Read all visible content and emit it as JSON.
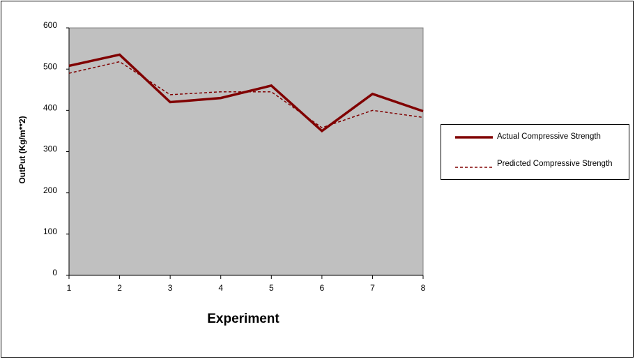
{
  "chart_data": {
    "type": "line",
    "x_label": "Experiment",
    "y_label": "OutPut (Kg/m**2)",
    "x": [
      1,
      2,
      3,
      4,
      5,
      6,
      7,
      8
    ],
    "series": [
      {
        "name": "Actual Compressive Strength",
        "color": "#800000",
        "style": "solid",
        "values": [
          508,
          535,
          420,
          430,
          460,
          350,
          440,
          398
        ]
      },
      {
        "name": "Predicted Compressive Strength",
        "color": "#800000",
        "style": "dashed",
        "values": [
          490,
          518,
          438,
          445,
          445,
          358,
          400,
          383
        ]
      }
    ],
    "xlim": [
      1,
      8
    ],
    "xticks": [
      1,
      2,
      3,
      4,
      5,
      6,
      7,
      8
    ],
    "ylim": [
      0,
      600
    ],
    "yticks": [
      0,
      100,
      200,
      300,
      400,
      500,
      600
    ],
    "grid": false,
    "legend": "right",
    "plot_background": "#c0c0c0"
  }
}
